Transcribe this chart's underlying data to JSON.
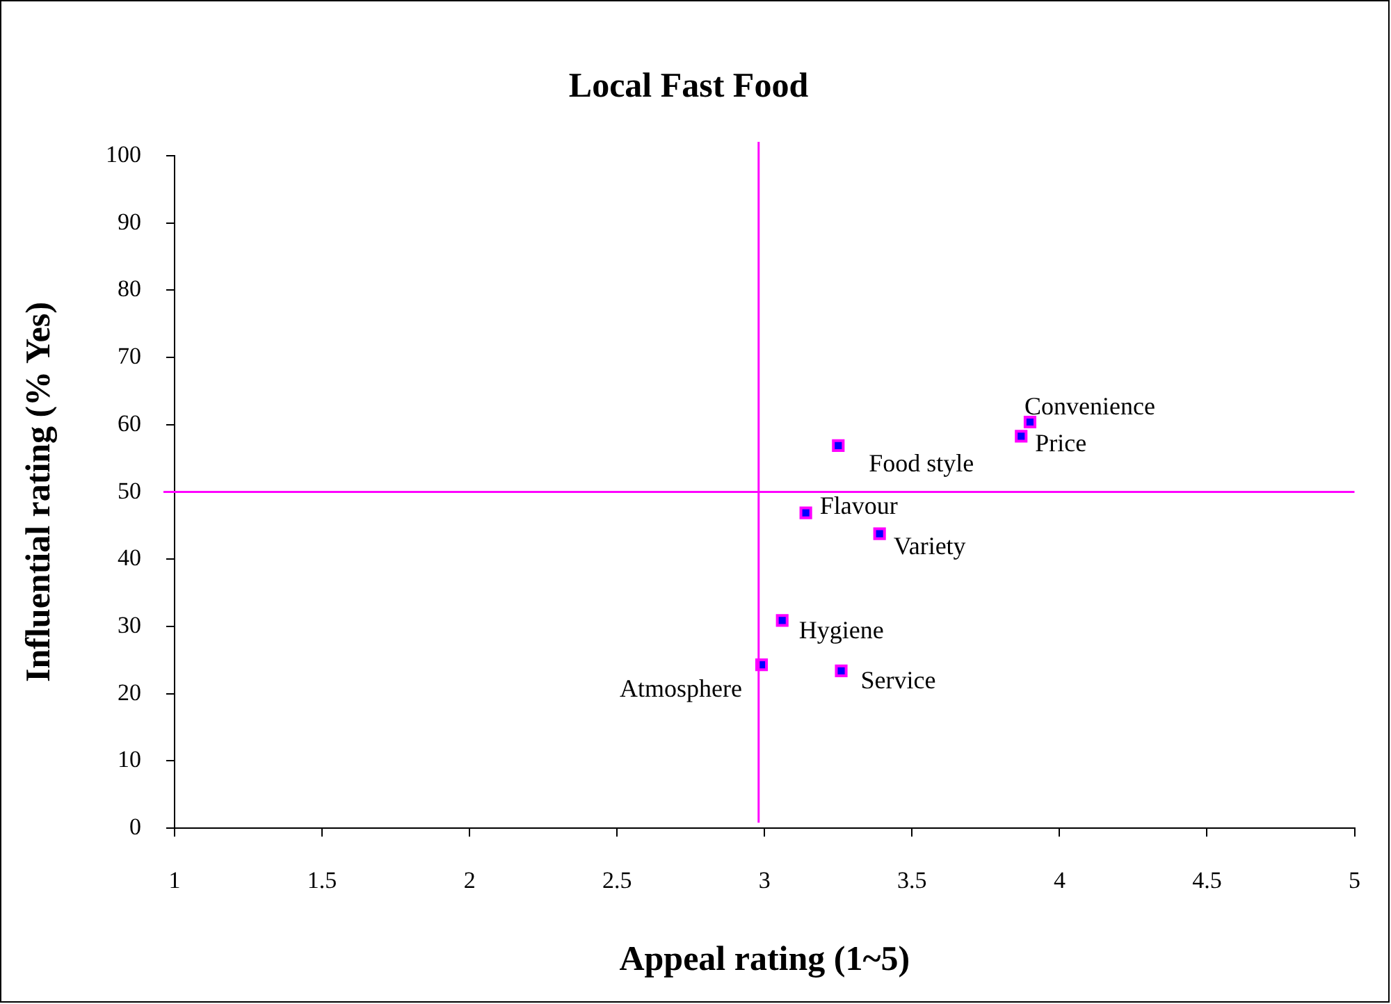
{
  "chart_data": {
    "type": "scatter",
    "title": "Local Fast Food",
    "xlabel": "Appeal rating (1~5)",
    "ylabel": "Influential rating (% Yes)",
    "x": [
      3.9,
      3.87,
      3.25,
      3.14,
      3.39,
      3.06,
      2.99,
      3.26
    ],
    "values": [
      60.4,
      58.3,
      56.9,
      46.9,
      43.8,
      30.9,
      24.3,
      23.4
    ],
    "color": "#0000ff",
    "marker": "square",
    "grid": false,
    "legend": false,
    "xlim": [
      1,
      5
    ],
    "xticks": [
      1,
      1.5,
      2,
      2.5,
      3,
      3.5,
      4,
      4.5,
      5
    ],
    "ylim": [
      0,
      100
    ],
    "yticks": [
      0,
      10,
      20,
      30,
      40,
      50,
      60,
      70,
      80,
      90,
      100
    ],
    "ref_lines": [
      {
        "axis": "x",
        "value": 2.98,
        "color": "#ff00ff"
      },
      {
        "axis": "y",
        "value": 50,
        "color": "#ff00ff"
      }
    ],
    "annotations": [
      {
        "text": "Convenience",
        "x": 3.9,
        "y": 60.4
      },
      {
        "text": "Price",
        "x": 3.87,
        "y": 58.3
      },
      {
        "text": "Food style",
        "x": 3.25,
        "y": 56.9
      },
      {
        "text": "Flavour",
        "x": 3.14,
        "y": 46.9
      },
      {
        "text": "Variety",
        "x": 3.39,
        "y": 43.8
      },
      {
        "text": "Hygiene",
        "x": 3.06,
        "y": 30.9
      },
      {
        "text": "Atmosphere",
        "x": 2.99,
        "y": 24.3
      },
      {
        "text": "Service",
        "x": 3.26,
        "y": 23.4
      }
    ]
  }
}
